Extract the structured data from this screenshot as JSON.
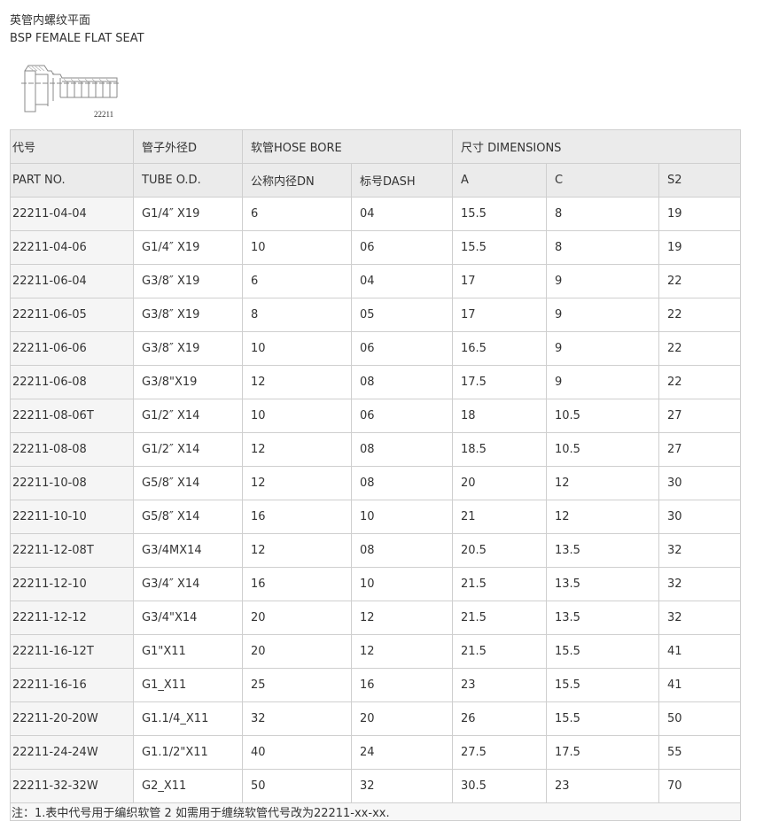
{
  "title_cn": "英管内螺纹平面",
  "title_en": "BSP FEMALE FLAT SEAT",
  "drawing_label": "22211",
  "header1": [
    "代号",
    "管子外径D",
    "软管HOSE BORE",
    "尺寸 DIMENSIONS"
  ],
  "header2": [
    "PART NO.",
    "TUBE O.D.",
    "公称内径DN",
    "标号DASH",
    "A",
    "C",
    "S2"
  ],
  "rows": [
    [
      "22211-04-04",
      "G1/4″ X19",
      "6",
      "04",
      "15.5",
      "8",
      "19"
    ],
    [
      "22211-04-06",
      "G1/4″ X19",
      "10",
      "06",
      "15.5",
      "8",
      "19"
    ],
    [
      "22211-06-04",
      "G3/8″ X19",
      "6",
      "04",
      "17",
      "9",
      "22"
    ],
    [
      "22211-06-05",
      "G3/8″ X19",
      "8",
      "05",
      "17",
      "9",
      "22"
    ],
    [
      "22211-06-06",
      "G3/8″ X19",
      "10",
      "06",
      "16.5",
      "9",
      "22"
    ],
    [
      "22211-06-08",
      "G3/8\"X19",
      "12",
      "08",
      "17.5",
      "9",
      "22"
    ],
    [
      "22211-08-06T",
      "G1/2″ X14",
      "10",
      "06",
      "18",
      "10.5",
      "27"
    ],
    [
      "22211-08-08",
      "G1/2″ X14",
      "12",
      "08",
      "18.5",
      "10.5",
      "27"
    ],
    [
      "22211-10-08",
      "G5/8″ X14",
      "12",
      "08",
      "20",
      "12",
      "30"
    ],
    [
      "22211-10-10",
      "G5/8″ X14",
      "16",
      "10",
      "21",
      "12",
      "30"
    ],
    [
      "22211-12-08T",
      "G3/4MX14",
      "12",
      "08",
      "20.5",
      "13.5",
      "32"
    ],
    [
      "22211-12-10",
      "G3/4″ X14",
      "16",
      "10",
      "21.5",
      "13.5",
      "32"
    ],
    [
      "22211-12-12",
      "G3/4\"X14",
      "20",
      "12",
      "21.5",
      "13.5",
      "32"
    ],
    [
      "22211-16-12T",
      "G1\"X11",
      "20",
      "12",
      "21.5",
      "15.5",
      "41"
    ],
    [
      "22211-16-16",
      "G1_X11",
      "25",
      "16",
      "23",
      "15.5",
      "41"
    ],
    [
      "22211-20-20W",
      "G1.1/4_X11",
      "32",
      "20",
      "26",
      "15.5",
      "50"
    ],
    [
      "22211-24-24W",
      "G1.1/2\"X11",
      "40",
      "24",
      "27.5",
      "17.5",
      "55"
    ],
    [
      "22211-32-32W",
      "G2_X11",
      "50",
      "32",
      "30.5",
      "23",
      "70"
    ]
  ],
  "note": "注：1.表中代号用于编织软管 2 如需用于缠绕软管代号改为22211-xx-xx."
}
